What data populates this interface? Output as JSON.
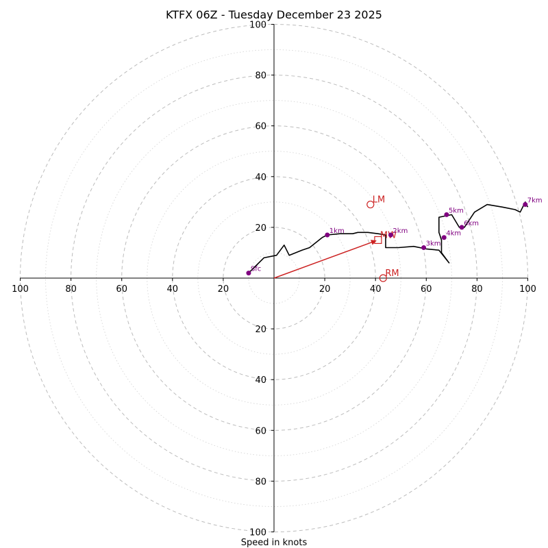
{
  "chart_data": {
    "type": "hodograph",
    "title": "KTFX 06Z - Tuesday December 23 2025",
    "xlabel": "Speed in knots",
    "x_range": [
      -100,
      100
    ],
    "y_range": [
      -100,
      100
    ],
    "ring_major_step": 20,
    "ring_minor_step": 10,
    "tick_labels": [
      "100",
      "80",
      "60",
      "40",
      "20",
      "20",
      "40",
      "60",
      "80",
      "100"
    ],
    "y_tick_labels": [
      "100",
      "80",
      "60",
      "40",
      "20",
      "20",
      "40",
      "60",
      "80",
      "100"
    ],
    "grid": true,
    "colors": {
      "trace": "#000000",
      "markers": "#800080",
      "motion": "#cc2222",
      "grid": "#bbbbbb"
    },
    "trace": [
      [
        -10,
        2
      ],
      [
        -7,
        5
      ],
      [
        -4,
        8
      ],
      [
        1,
        9
      ],
      [
        4,
        13
      ],
      [
        6,
        9
      ],
      [
        11,
        11
      ],
      [
        14,
        12
      ],
      [
        19,
        16
      ],
      [
        21,
        17
      ],
      [
        26,
        17.5
      ],
      [
        31,
        17.5
      ],
      [
        33,
        18
      ],
      [
        37,
        18
      ],
      [
        41,
        17.5
      ],
      [
        44,
        17
      ],
      [
        44,
        15
      ],
      [
        44,
        12
      ],
      [
        49,
        12
      ],
      [
        55,
        12.5
      ],
      [
        60,
        11.5
      ],
      [
        65,
        11
      ],
      [
        69,
        6
      ],
      [
        66,
        10
      ],
      [
        66,
        15
      ],
      [
        65,
        18
      ],
      [
        65,
        21
      ],
      [
        65,
        24
      ],
      [
        70,
        25
      ],
      [
        73,
        20
      ],
      [
        75,
        20
      ],
      [
        79,
        26
      ],
      [
        84,
        29
      ],
      [
        90,
        28
      ],
      [
        95,
        27
      ],
      [
        97,
        26
      ],
      [
        99,
        30
      ],
      [
        100,
        28
      ]
    ],
    "markers": [
      {
        "label": "Sfc",
        "x": -10,
        "y": 2
      },
      {
        "label": "1km",
        "x": 21,
        "y": 17
      },
      {
        "label": "2km",
        "x": 46,
        "y": 17
      },
      {
        "label": "3km",
        "x": 59,
        "y": 12
      },
      {
        "label": "4km",
        "x": 67,
        "y": 16
      },
      {
        "label": "5km",
        "x": 68,
        "y": 25
      },
      {
        "label": "6km",
        "x": 74,
        "y": 20
      },
      {
        "label": "7km",
        "x": 99,
        "y": 29
      }
    ],
    "storm_motion": [
      {
        "label": "LM",
        "x": 38,
        "y": 29,
        "shape": "circle"
      },
      {
        "label": "MW",
        "x": 41,
        "y": 15,
        "shape": "square"
      },
      {
        "label": "RM",
        "x": 43,
        "y": 0,
        "shape": "circle"
      }
    ],
    "motion_vector": {
      "x": 41,
      "y": 15
    }
  }
}
